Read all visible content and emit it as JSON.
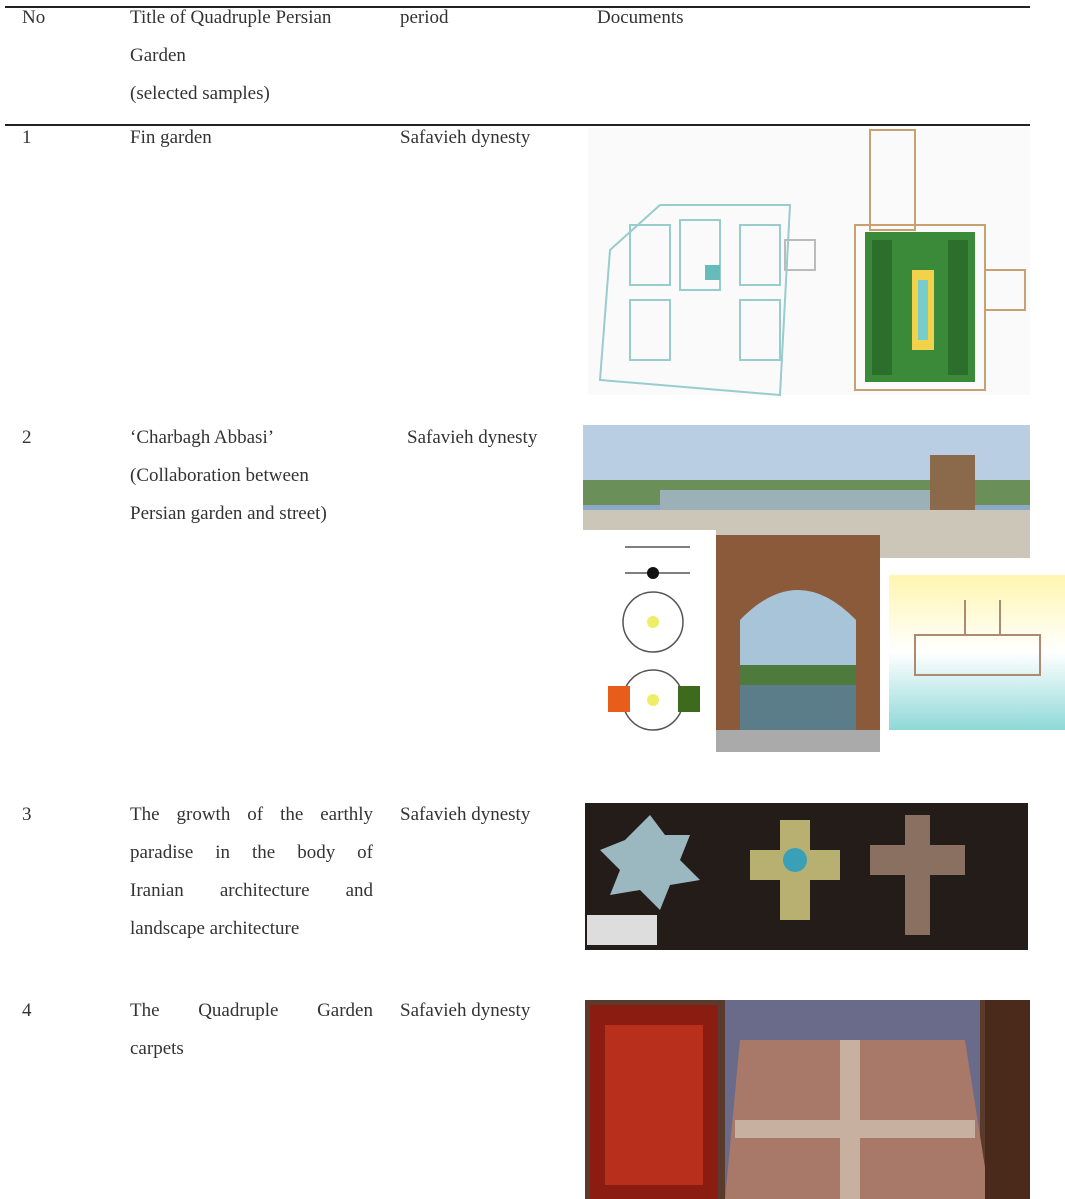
{
  "table": {
    "headers": [
      [
        "No"
      ],
      [
        "Title of Quadruple Persian",
        "Garden",
        "(selected samples)"
      ],
      [
        "period"
      ],
      [
        "Documents"
      ]
    ],
    "rows": [
      {
        "no": "1",
        "title": [
          "Fin garden"
        ],
        "period": "Safavieh dynesty"
      },
      {
        "no": "2",
        "title": [
          "‘Charbagh Abbasi’",
          "(Collaboration between",
          "Persian garden and street)"
        ],
        "period": "Safavieh dynesty"
      },
      {
        "no": "3",
        "title": [
          "The growth of the earthly",
          "paradise in the body of",
          "Iranian architecture and",
          "landscape architecture"
        ],
        "period": "Safavieh dynesty"
      },
      {
        "no": "4",
        "title": [
          "The Quadruple Garden",
          "carpets"
        ],
        "period": "Safavieh dynesty"
      }
    ]
  }
}
